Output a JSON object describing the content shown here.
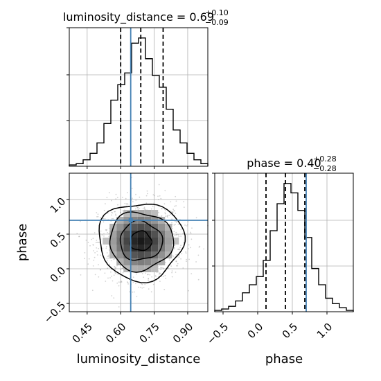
{
  "chart_data": [
    {
      "type": "histogram",
      "panel": "luminosity_distance-marginal",
      "title_param": "luminosity_distance",
      "title_value": "0.69",
      "title_plus": "+0.10",
      "title_minus": "−0.09",
      "x_range": [
        0.37,
        0.99
      ],
      "bin_edges": [
        0.37,
        0.401,
        0.432,
        0.463,
        0.494,
        0.525,
        0.556,
        0.587,
        0.618,
        0.649,
        0.68,
        0.711,
        0.742,
        0.773,
        0.804,
        0.835,
        0.866,
        0.897,
        0.928,
        0.959,
        0.99
      ],
      "counts": [
        1,
        2,
        5,
        10,
        18,
        33,
        51,
        63,
        72,
        95,
        99,
        83,
        70,
        61,
        44,
        28,
        18,
        10,
        5,
        2
      ],
      "quantiles": [
        0.6,
        0.69,
        0.79
      ],
      "truth": 0.645,
      "colors": {
        "quantile": "#000000",
        "truth": "#4682b4",
        "hist": "#000000"
      }
    },
    {
      "type": "histogram",
      "panel": "phase-marginal",
      "title_param": "phase",
      "title_value": "0.40",
      "title_plus": "+0.28",
      "title_minus": "−0.28",
      "x_range": [
        -0.62,
        1.38
      ],
      "bin_edges": [
        -0.62,
        -0.52,
        -0.42,
        -0.32,
        -0.22,
        -0.12,
        -0.02,
        0.08,
        0.18,
        0.28,
        0.38,
        0.48,
        0.58,
        0.68,
        0.78,
        0.88,
        0.98,
        1.08,
        1.18,
        1.28,
        1.38
      ],
      "counts": [
        1,
        2,
        4,
        8,
        14,
        20,
        26,
        38,
        60,
        80,
        95,
        88,
        75,
        55,
        32,
        20,
        10,
        6,
        3,
        1
      ],
      "quantiles": [
        0.12,
        0.4,
        0.68
      ],
      "truth": 0.7,
      "colors": {
        "quantile": "#000000",
        "truth": "#4682b4",
        "hist": "#000000"
      }
    },
    {
      "type": "scatter-density",
      "panel": "joint",
      "xlabel": "luminosity_distance",
      "ylabel": "phase",
      "x_range": [
        0.37,
        0.99
      ],
      "y_range": [
        -0.62,
        1.38
      ],
      "x_ticks": [
        "0.45",
        "0.60",
        "0.75",
        "0.90"
      ],
      "x_tick_values": [
        0.45,
        0.6,
        0.75,
        0.9
      ],
      "y_ticks": [
        "−0.5",
        "0.0",
        "0.5",
        "1.0"
      ],
      "y_tick_values": [
        -0.5,
        0.0,
        0.5,
        1.0
      ],
      "center": [
        0.69,
        0.4
      ],
      "spread": [
        0.095,
        0.28
      ],
      "truth": [
        0.645,
        0.7
      ],
      "contour_levels_sigma": [
        0.5,
        1.0,
        1.5,
        2.0
      ],
      "colors": {
        "contour": "#000000",
        "truth": "#4682b4",
        "points": "#808080"
      }
    }
  ],
  "x_axis_names": {
    "luminosity_distance": "luminosity_distance",
    "phase": "phase"
  },
  "phase_x_ticks": [
    "−0.5",
    "0.0",
    "0.5",
    "1.0"
  ],
  "phase_x_tick_values": [
    -0.5,
    0.0,
    0.5,
    1.0
  ]
}
